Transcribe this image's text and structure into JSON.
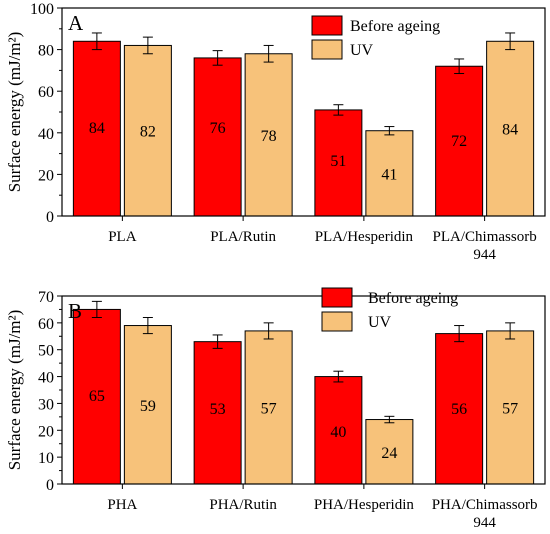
{
  "chart_data": [
    {
      "type": "bar",
      "panel_label": "A",
      "categories": [
        "PLA",
        "PLA/Rutin",
        "PLA/Hesperidin",
        "PLA/Chimassorb\n944"
      ],
      "series": [
        {
          "name": "Before ageing",
          "values": [
            84,
            76,
            51,
            72
          ],
          "errors": [
            4,
            3.5,
            2.5,
            3.5
          ],
          "color": "#ff0000"
        },
        {
          "name": "UV",
          "values": [
            82,
            78,
            41,
            84
          ],
          "errors": [
            4,
            4,
            2,
            4
          ],
          "color": "#f7c27a"
        }
      ],
      "ylabel": "Surface energy (mJ/m²)",
      "ylim": [
        0,
        100
      ],
      "yticks": [
        0,
        20,
        40,
        60,
        80,
        100
      ],
      "legend_position": "top-right"
    },
    {
      "type": "bar",
      "panel_label": "B",
      "categories": [
        "PHA",
        "PHA/Rutin",
        "PHA/Hesperidin",
        "PHA/Chimassorb\n944"
      ],
      "series": [
        {
          "name": "Before ageing",
          "values": [
            65,
            53,
            40,
            56
          ],
          "errors": [
            3,
            2.5,
            2,
            3
          ],
          "color": "#ff0000"
        },
        {
          "name": "UV",
          "values": [
            59,
            57,
            24,
            57
          ],
          "errors": [
            3,
            3,
            1.2,
            3
          ],
          "color": "#f7c27a"
        }
      ],
      "ylabel": "Surface energy (mJ/m²)",
      "ylim": [
        0,
        70
      ],
      "yticks": [
        0,
        10,
        20,
        30,
        40,
        50,
        60,
        70
      ],
      "legend_position": "top-right"
    }
  ]
}
